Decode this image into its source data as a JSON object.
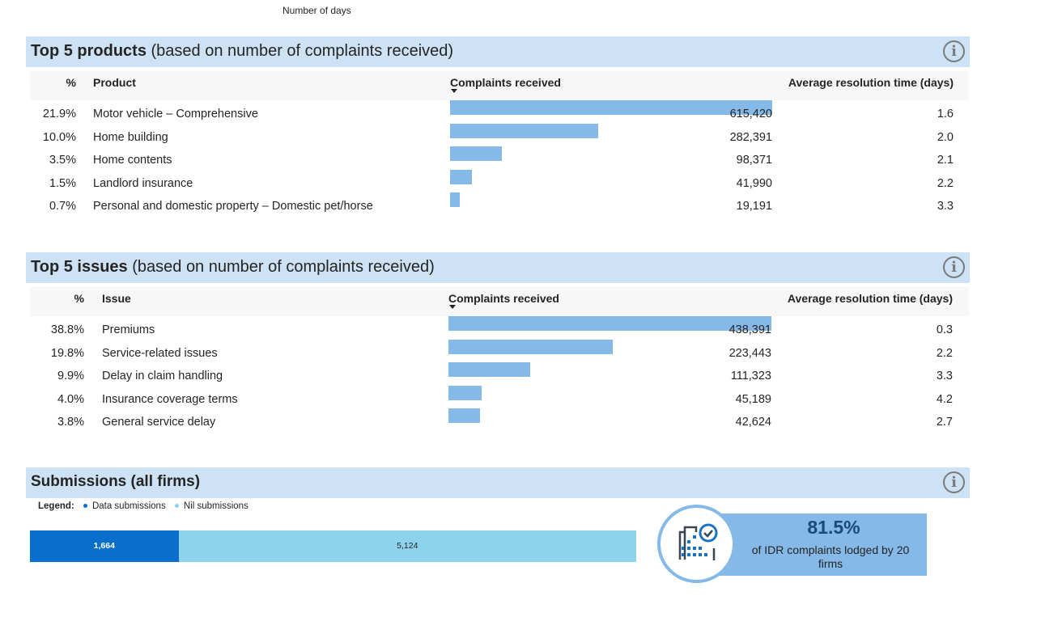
{
  "top_label": "Number of days",
  "products": {
    "title_bold": "Top 5 products",
    "title_rest": " (based on number of complaints received)",
    "columns": {
      "pct": "%",
      "name": "Product",
      "complaints": "Complaints received",
      "avg": "Average resolution time (days)"
    },
    "rows": [
      {
        "pct": "21.9%",
        "name": "Motor vehicle – Comprehensive",
        "complaints": "615,420",
        "value": 615420,
        "avg": "1.6"
      },
      {
        "pct": "10.0%",
        "name": "Home building",
        "complaints": "282,391",
        "value": 282391,
        "avg": "2.0"
      },
      {
        "pct": "3.5%",
        "name": "Home contents",
        "complaints": "98,371",
        "value": 98371,
        "avg": "2.1"
      },
      {
        "pct": "1.5%",
        "name": "Landlord insurance",
        "complaints": "41,990",
        "value": 41990,
        "avg": "2.2"
      },
      {
        "pct": "0.7%",
        "name": "Personal and domestic property – Domestic pet/horse",
        "complaints": "19,191",
        "value": 19191,
        "avg": "3.3"
      }
    ]
  },
  "issues": {
    "title_bold": "Top 5 issues",
    "title_rest": " (based on number of complaints received)",
    "columns": {
      "pct": "%",
      "name": "Issue",
      "complaints": "Complaints received",
      "avg": "Average resolution time (days)"
    },
    "rows": [
      {
        "pct": "38.8%",
        "name": "Premiums",
        "complaints": "438,391",
        "value": 438391,
        "avg": "0.3"
      },
      {
        "pct": "19.8%",
        "name": "Service-related issues",
        "complaints": "223,443",
        "value": 223443,
        "avg": "2.2"
      },
      {
        "pct": "9.9%",
        "name": "Delay in claim handling",
        "complaints": "111,323",
        "value": 111323,
        "avg": "3.3"
      },
      {
        "pct": "4.0%",
        "name": "Insurance coverage terms",
        "complaints": "45,189",
        "value": 45189,
        "avg": "4.2"
      },
      {
        "pct": "3.8%",
        "name": "General service delay",
        "complaints": "42,624",
        "value": 42624,
        "avg": "2.7"
      }
    ]
  },
  "submissions": {
    "title": "Submissions (all firms)",
    "legend_label": "Legend:",
    "series": [
      {
        "name": "Data submissions",
        "value": 1664,
        "label": "1,664",
        "color": "#0a6fcc"
      },
      {
        "name": "Nil submissions",
        "value": 5124,
        "label": "5,124",
        "color": "#8dd3ee"
      }
    ]
  },
  "kpi": {
    "value": "81.5%",
    "text": "of IDR complaints lodged by 20 firms",
    "icon": "building-check-icon"
  },
  "colors": {
    "header_bg": "#cde3f5",
    "bar": "#85b9e8",
    "kpi_bg": "#85b9e8",
    "kpi_value": "#1b4a7a"
  }
}
